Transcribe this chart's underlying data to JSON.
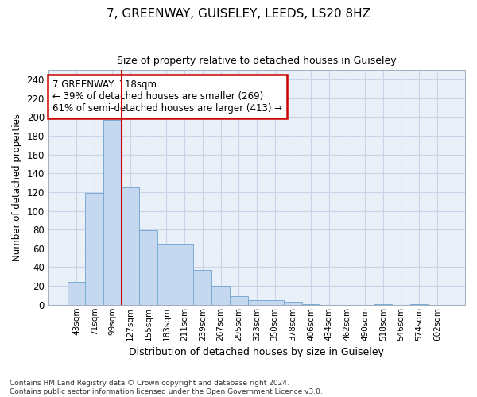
{
  "title1": "7, GREENWAY, GUISELEY, LEEDS, LS20 8HZ",
  "title2": "Size of property relative to detached houses in Guiseley",
  "xlabel": "Distribution of detached houses by size in Guiseley",
  "ylabel": "Number of detached properties",
  "categories": [
    "43sqm",
    "71sqm",
    "99sqm",
    "127sqm",
    "155sqm",
    "183sqm",
    "211sqm",
    "239sqm",
    "267sqm",
    "295sqm",
    "323sqm",
    "350sqm",
    "378sqm",
    "406sqm",
    "434sqm",
    "462sqm",
    "490sqm",
    "518sqm",
    "546sqm",
    "574sqm",
    "602sqm"
  ],
  "values": [
    24,
    119,
    197,
    125,
    79,
    65,
    65,
    37,
    20,
    9,
    5,
    5,
    3,
    1,
    0,
    0,
    0,
    1,
    0,
    1,
    0
  ],
  "bar_color": "#c5d8f0",
  "bar_edge_color": "#7aaad4",
  "vline_color": "#cc0000",
  "annotation_text": "7 GREENWAY: 118sqm\n← 39% of detached houses are smaller (269)\n61% of semi-detached houses are larger (413) →",
  "annotation_box_color": "#ffffff",
  "annotation_box_edge": "#cc0000",
  "ylim": [
    0,
    250
  ],
  "yticks": [
    0,
    20,
    40,
    60,
    80,
    100,
    120,
    140,
    160,
    180,
    200,
    220,
    240
  ],
  "grid_color": "#c8d4e8",
  "background_color": "#eaf0f8",
  "footer": "Contains HM Land Registry data © Crown copyright and database right 2024.\nContains public sector information licensed under the Open Government Licence v3.0."
}
